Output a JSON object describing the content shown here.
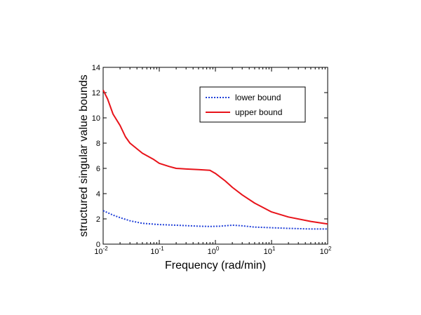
{
  "chart_data": {
    "type": "line",
    "title": "",
    "xlabel": "Frequency (rad/min)",
    "ylabel": "structured singular value bounds",
    "xscale": "log",
    "xlim": [
      0.01,
      100
    ],
    "ylim": [
      0,
      14
    ],
    "grid": false,
    "legend_position": "top-right",
    "x_ticks": [
      {
        "value": 0.01,
        "base": "10",
        "exp": "-2"
      },
      {
        "value": 0.1,
        "base": "10",
        "exp": "-1"
      },
      {
        "value": 1,
        "base": "10",
        "exp": "0"
      },
      {
        "value": 10,
        "base": "10",
        "exp": "1"
      },
      {
        "value": 100,
        "base": "10",
        "exp": "2"
      }
    ],
    "y_ticks": [
      "0",
      "2",
      "4",
      "6",
      "8",
      "10",
      "12",
      "14"
    ],
    "series": [
      {
        "name": "lower bound",
        "color": "#1f3fd8",
        "style": "dotted",
        "x": [
          0.01,
          0.015,
          0.02,
          0.03,
          0.05,
          0.1,
          0.2,
          0.5,
          0.8,
          1.2,
          2,
          3,
          5,
          10,
          20,
          50,
          100
        ],
        "y": [
          2.65,
          2.3,
          2.1,
          1.85,
          1.65,
          1.55,
          1.5,
          1.42,
          1.4,
          1.42,
          1.5,
          1.45,
          1.35,
          1.3,
          1.25,
          1.2,
          1.2
        ]
      },
      {
        "name": "upper bound",
        "color": "#e8131a",
        "style": "solid",
        "x": [
          0.01,
          0.012,
          0.015,
          0.02,
          0.025,
          0.03,
          0.05,
          0.08,
          0.1,
          0.15,
          0.2,
          0.3,
          0.5,
          0.8,
          1,
          1.5,
          2,
          3,
          5,
          10,
          20,
          50,
          100
        ],
        "y": [
          12.2,
          11.5,
          10.3,
          9.4,
          8.5,
          8.0,
          7.2,
          6.7,
          6.4,
          6.15,
          6.0,
          5.95,
          5.9,
          5.85,
          5.6,
          5.0,
          4.5,
          3.9,
          3.25,
          2.55,
          2.15,
          1.8,
          1.6
        ]
      }
    ]
  }
}
